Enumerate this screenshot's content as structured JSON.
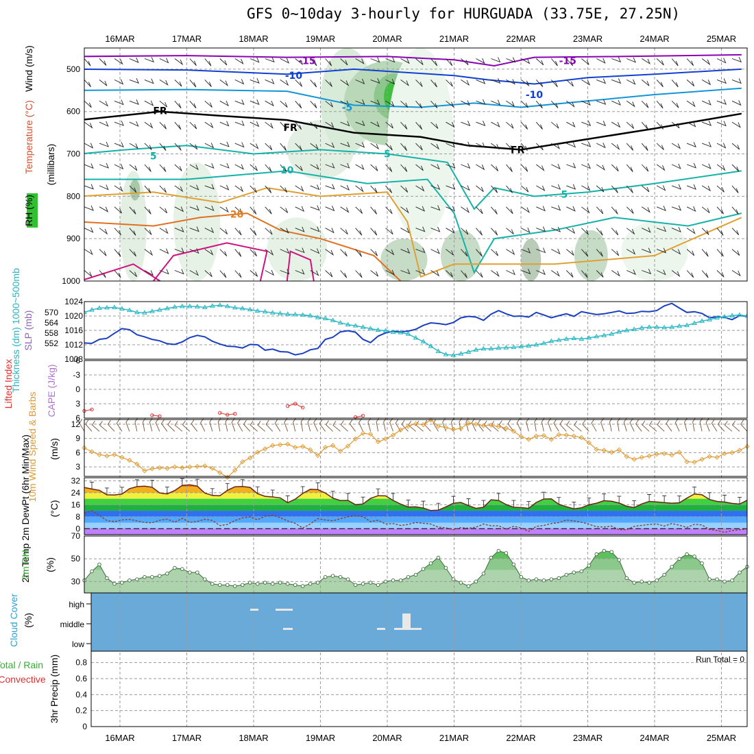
{
  "title": "GFS 0~10day 3-hourly for HURGUADA (33.75E, 27.25N)",
  "dates": [
    "16MAR",
    "17MAR",
    "18MAR",
    "19MAR",
    "20MAR",
    "21MAR",
    "22MAR",
    "23MAR",
    "24MAR",
    "25MAR"
  ],
  "chart_data": [
    {
      "type": "heatmap",
      "name": "upper-air",
      "ylabel": "(millibars)",
      "side_labels": {
        "wind": "Wind (m/s)",
        "temperature": "Temperature (°C)",
        "rh": "RH (%)"
      },
      "ylim": [
        1000,
        450
      ],
      "yticks": [
        "500",
        "600",
        "700",
        "800",
        "900",
        "1000"
      ],
      "contour_labels": [
        {
          "text": "-15",
          "day": 2.8,
          "p": 480,
          "color": "#8a00b5"
        },
        {
          "text": "-15",
          "day": 6.7,
          "p": 480,
          "color": "#8a00b5"
        },
        {
          "text": "-10",
          "day": 2.6,
          "p": 515,
          "color": "#1040d0"
        },
        {
          "text": "-10",
          "day": 6.2,
          "p": 560,
          "color": "#1040d0"
        },
        {
          "text": "-5",
          "day": 3.4,
          "p": 590,
          "color": "#1096d8"
        },
        {
          "text": "FR",
          "day": 0.6,
          "p": 598,
          "color": "#000"
        },
        {
          "text": "FR",
          "day": 2.55,
          "p": 638,
          "color": "#000"
        },
        {
          "text": "FR",
          "day": 5.95,
          "p": 690,
          "color": "#000"
        },
        {
          "text": "5",
          "day": 0.5,
          "p": 705,
          "color": "#14b2a8"
        },
        {
          "text": "5",
          "day": 4.0,
          "p": 700,
          "color": "#14b2a8"
        },
        {
          "text": "5",
          "day": 6.65,
          "p": 795,
          "color": "#14b2a8"
        },
        {
          "text": "10",
          "day": 2.5,
          "p": 738,
          "color": "#14b2a8"
        },
        {
          "text": "20",
          "day": 1.75,
          "p": 842,
          "color": "#e08020"
        }
      ]
    },
    {
      "type": "line",
      "name": "sea-level-pressure-thickness",
      "ylabel_left": "Thickness (dm) 1000~500mb",
      "ylabel_right": "SLP (mb)",
      "yticks_left": [
        "570",
        "564",
        "558",
        "552"
      ],
      "yticks_right": [
        "1024",
        "1020",
        "1016",
        "1012",
        "1008"
      ],
      "ylim_right": [
        1008,
        1024
      ],
      "series": [
        {
          "color": "#2a8ed8",
          "values": [
            1012.5,
            1012.4,
            1013.5,
            1013.8,
            1015.2,
            1016.5,
            1016.2,
            1014.8,
            1014.2,
            1013.5,
            1013.1,
            1012.3,
            1012.1,
            1012.8,
            1014.0,
            1014.6,
            1014.2,
            1013.0,
            1012.2,
            1011.6,
            1011.5,
            1011.1,
            1012.1,
            1012.0,
            1010.5,
            1010.8,
            1010.1,
            1010.0,
            1009.2,
            1009.6,
            1010.6,
            1011.0,
            1013.5,
            1014.1,
            1015.6,
            1015.9,
            1015.5,
            1013.5,
            1012.6,
            1014.4,
            1015.3,
            1015.8,
            1015.6,
            1015.8,
            1016.3,
            1017.4,
            1018.1,
            1017.9,
            1017.6,
            1018.2,
            1019.5,
            1019.9,
            1019.7,
            1018.8,
            1020.5,
            1021.5,
            1020.6,
            1019.9,
            1020.0,
            1019.7,
            1021.0,
            1020.3,
            1019.5,
            1020.1,
            1020.6,
            1019.9,
            1021.2,
            1020.8,
            1020.4,
            1020.6,
            1021.0,
            1021.4,
            1020.7,
            1020.8,
            1021.3,
            1021.2,
            1021.5,
            1022.8,
            1023.5,
            1022.2,
            1021.0,
            1021.2,
            1020.7,
            1019.5,
            1019.8,
            1019.6,
            1019.0,
            1020.1,
            1020.0
          ]
        },
        {
          "color": "#22b6c3",
          "values": [
            1021.0,
            1021.7,
            1022.2,
            1022.3,
            1022.4,
            1022.0,
            1021.6,
            1021.0,
            1020.9,
            1021.3,
            1021.7,
            1022.1,
            1022.5,
            1022.7,
            1022.7,
            1022.6,
            1022.4,
            1022.8,
            1023.0,
            1022.7,
            1022.3,
            1022.1,
            1021.8,
            1021.4,
            1021.2,
            1020.9,
            1020.7,
            1020.5,
            1020.4,
            1020.3,
            1020.1,
            1019.6,
            1019.3,
            1018.8,
            1018.1,
            1017.6,
            1017.3,
            1016.9,
            1016.5,
            1016.1,
            1015.9,
            1015.5,
            1015.4,
            1015.0,
            1013.9,
            1012.9,
            1011.6,
            1010.2,
            1009.3,
            1009.1,
            1009.5,
            1010.0,
            1010.6,
            1010.9,
            1010.9,
            1011.1,
            1011.2,
            1011.3,
            1011.5,
            1011.7,
            1012.0,
            1012.4,
            1013.0,
            1013.3,
            1013.6,
            1013.8,
            1013.6,
            1013.9,
            1014.3,
            1014.6,
            1015.0,
            1015.6,
            1016.0,
            1016.3,
            1016.7,
            1016.9,
            1016.9,
            1016.8,
            1016.9,
            1017.2,
            1017.4,
            1018.0,
            1018.6,
            1019.0,
            1019.5,
            1019.8,
            1020.1,
            1020.3,
            1020.0
          ]
        }
      ]
    },
    {
      "type": "line",
      "name": "lifted-index-cape",
      "ylabel_left": "Lifted Index",
      "ylabel_right": "CAPE (J/kg)",
      "yticks": [
        "-6",
        "-3",
        "0",
        "3",
        "6"
      ],
      "ylim": [
        -6,
        6
      ],
      "series": [
        {
          "color": "#e03030",
          "values": [
            4.5,
            4.2,
            null,
            null,
            null,
            null,
            null,
            null,
            null,
            5.4,
            5.6,
            null,
            null,
            null,
            null,
            null,
            null,
            null,
            4.9,
            5.3,
            5.1,
            null,
            null,
            null,
            null,
            null,
            null,
            3.5,
            3.0,
            3.8,
            null,
            null,
            null,
            null,
            null,
            null,
            5.8,
            5.5,
            null,
            null,
            null,
            null,
            null,
            null,
            null,
            null,
            null,
            null,
            null,
            null,
            null,
            null,
            null,
            null,
            null,
            null,
            null,
            null,
            null,
            null,
            null,
            null,
            null,
            null,
            null,
            null,
            null,
            null,
            null,
            null,
            null,
            null,
            null,
            null,
            null,
            null,
            null,
            null,
            null,
            null,
            null,
            null,
            null,
            null,
            null,
            null,
            null,
            null,
            null
          ]
        }
      ]
    },
    {
      "type": "line",
      "name": "10m-wind",
      "ylabel_left": "10m Wind Speed & Barbs",
      "ylabel_right": "(m/s)",
      "yticks": [
        "12",
        "9",
        "6",
        "3"
      ],
      "ylim": [
        1,
        13
      ],
      "series": [
        {
          "color": "#e09a30",
          "values": [
            7.0,
            6.2,
            5.6,
            5.3,
            5.6,
            5.0,
            4.4,
            3.6,
            2.2,
            2.6,
            2.8,
            2.7,
            3.0,
            2.8,
            3.0,
            3.1,
            3.2,
            2.7,
            1.8,
            0.8,
            2.3,
            4.1,
            4.9,
            6.1,
            6.8,
            7.5,
            7.7,
            7.8,
            7.1,
            7.3,
            6.6,
            5.4,
            7.1,
            7.5,
            6.3,
            7.4,
            8.9,
            10.1,
            9.9,
            8.3,
            8.9,
            9.7,
            10.8,
            11.6,
            12.1,
            11.9,
            12.9,
            11.6,
            11.3,
            10.9,
            11.1,
            12.2,
            12.0,
            11.7,
            11.8,
            11.5,
            11.2,
            10.5,
            9.4,
            8.8,
            9.5,
            9.6,
            8.8,
            9.8,
            9.7,
            9.5,
            9.2,
            8.1,
            6.7,
            6.5,
            6.1,
            6.6,
            5.2,
            4.6,
            5.0,
            5.3,
            5.7,
            5.8,
            5.5,
            6.1,
            4.1,
            4.0,
            4.6,
            5.2,
            5.0,
            5.8,
            6.0,
            6.5,
            7.3
          ]
        }
      ]
    },
    {
      "type": "area",
      "name": "2m-temperature",
      "ylabel_left": "2m Temp 2m DewPt (6hr Min/Max)",
      "ylabel_right": "(°C)",
      "yticks": [
        "32",
        "24",
        "16",
        "8",
        "0"
      ],
      "ylim": [
        -4,
        34
      ],
      "series": [
        {
          "name": "2m Temp",
          "color": "#6b2410",
          "values": [
            27.5,
            26.5,
            25.6,
            22.6,
            22.5,
            23.1,
            26.7,
            28.1,
            28.4,
            27.7,
            23.9,
            23.2,
            25.5,
            28.9,
            29.3,
            28.4,
            23.8,
            22.2,
            22.0,
            25.6,
            28.0,
            28.2,
            27.6,
            23.4,
            21.6,
            21.2,
            20.6,
            17.4,
            19.7,
            23.5,
            26.3,
            26.1,
            23.8,
            20.4,
            18.8,
            18.9,
            16.0,
            16.5,
            20.2,
            22.0,
            21.9,
            18.9,
            16.4,
            14.5,
            14.6,
            13.8,
            12.1,
            12.4,
            14.6,
            17.0,
            17.5,
            15.4,
            13.6,
            14.3,
            19.3,
            18.9,
            16.1,
            14.3,
            14.1,
            13.6,
            17.5,
            19.8,
            19.9,
            16.3,
            14.7,
            13.2,
            14.0,
            15.9,
            17.0,
            18.7,
            18.3,
            17.1,
            15.0,
            14.1,
            16.5,
            18.2,
            17.9,
            17.4,
            17.0,
            17.3,
            20.4,
            23.2,
            22.6,
            19.5,
            18.2,
            17.8,
            16.9,
            16.4,
            19.0
          ]
        },
        {
          "name": "2m DewPt",
          "color": "#8a4030",
          "values": [
            10.4,
            12.0,
            8.8,
            5.4,
            4.7,
            5.8,
            6.2,
            5.2,
            4.1,
            3.9,
            5.6,
            6.4,
            4.3,
            6.9,
            4.2,
            4.8,
            6.3,
            5.5,
            2.1,
            2.8,
            5.5,
            7.2,
            7.8,
            6.0,
            8.3,
            8.9,
            7.4,
            5.1,
            3.6,
            0.4,
            3.2,
            6.7,
            5.8,
            5.3,
            6.6,
            8.0,
            8.6,
            8.1,
            4.7,
            5.6,
            3.1,
            3.4,
            2.2,
            2.8,
            4.1,
            3.6,
            3.1,
            1.0,
            0.6,
            -0.7,
            0.7,
            0.3,
            1.0,
            3.1,
            1.9,
            1.9,
            -0.3,
            1.6,
            0.5,
            -1.8,
            1.5,
            2.2,
            3.4,
            4.0,
            5.8,
            5.2,
            4.3,
            3.0,
            1.3,
            1.1,
            1.7,
            -0.7,
            -0.7,
            1.6,
            2.2,
            2.8,
            3.2,
            1.7,
            3.4,
            2.3,
            0.8,
            2.9,
            2.5,
            -0.5,
            -1.2,
            -2.5,
            -1.3,
            -0.7,
            -0.2
          ]
        }
      ]
    },
    {
      "type": "area",
      "name": "2m-relative-humidity",
      "ylabel_left": "2m RH",
      "ylabel_right": "(%)",
      "yticks": [
        "70",
        "50",
        "30"
      ],
      "ylim": [
        20,
        70
      ],
      "series": [
        {
          "name": "2m RH",
          "color": "#1f8f1f",
          "values": [
            31,
            39,
            45,
            33,
            28,
            29,
            31,
            32,
            34,
            34,
            35,
            37,
            42,
            41,
            38,
            38,
            32,
            28,
            27,
            27,
            26,
            27,
            29,
            28,
            29,
            28,
            29,
            28,
            27,
            26,
            28,
            29,
            34,
            35,
            34,
            32,
            27,
            28,
            29,
            27,
            30,
            31,
            31,
            34,
            36,
            41,
            46,
            51,
            42,
            32,
            29,
            26,
            30,
            37,
            51,
            57,
            55,
            45,
            34,
            31,
            32,
            31,
            32,
            33,
            36,
            38,
            39,
            44,
            54,
            57,
            56,
            49,
            33,
            29,
            30,
            29,
            31,
            36,
            43,
            50,
            54,
            52,
            46,
            32,
            32,
            30,
            31,
            38,
            43
          ]
        }
      ]
    },
    {
      "type": "heatmap",
      "name": "cloud-cover",
      "ylabel_left": "Cloud Cover",
      "ylabel_right": "(%)",
      "levels": [
        "high",
        "middle",
        "low"
      ]
    },
    {
      "type": "bar",
      "name": "precipitation",
      "ylabel_left": "Total / Rain Convective",
      "ylabel_right": "3hr Precip (mm)",
      "yticks": [
        "0.8",
        "0.6",
        "0.4",
        "0.2",
        "0"
      ],
      "ylim": [
        0,
        0.9
      ],
      "annotation": "Run Total = 0",
      "values": []
    }
  ]
}
